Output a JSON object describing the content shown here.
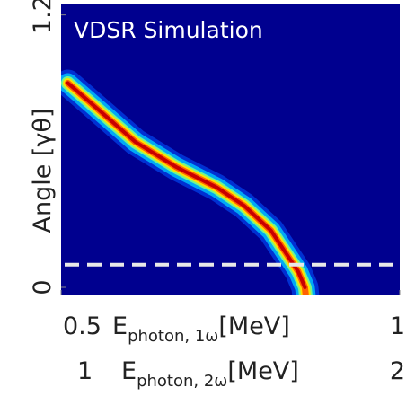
{
  "chart_data": {
    "type": "line",
    "title": "VDSR Simulation",
    "y_label": "Angle [γθ]",
    "x_label": {
      "symbol": "E",
      "subscript": "photon, 1ω",
      "unit": "[MeV]"
    },
    "x2_label": {
      "symbol": "E",
      "subscript": "photon, 2ω",
      "unit": "[MeV]"
    },
    "xlim": [
      0.5,
      1
    ],
    "xticks": [
      0.5,
      1
    ],
    "x2lim": [
      1,
      2
    ],
    "x2ticks": [
      1,
      2
    ],
    "ylim": [
      0,
      1.25
    ],
    "yticks": [
      0,
      1.2
    ],
    "background": "#00008f",
    "hline": 0.1,
    "hline_color": "#e8e8e8",
    "series": [
      {
        "color": "#c80000",
        "x": [
          0.51,
          0.56,
          0.61,
          0.67,
          0.73,
          0.77,
          0.81,
          0.83,
          0.85,
          0.86
        ],
        "values": [
          0.9,
          0.77,
          0.64,
          0.53,
          0.44,
          0.36,
          0.25,
          0.16,
          0.07,
          0.0
        ]
      }
    ]
  }
}
